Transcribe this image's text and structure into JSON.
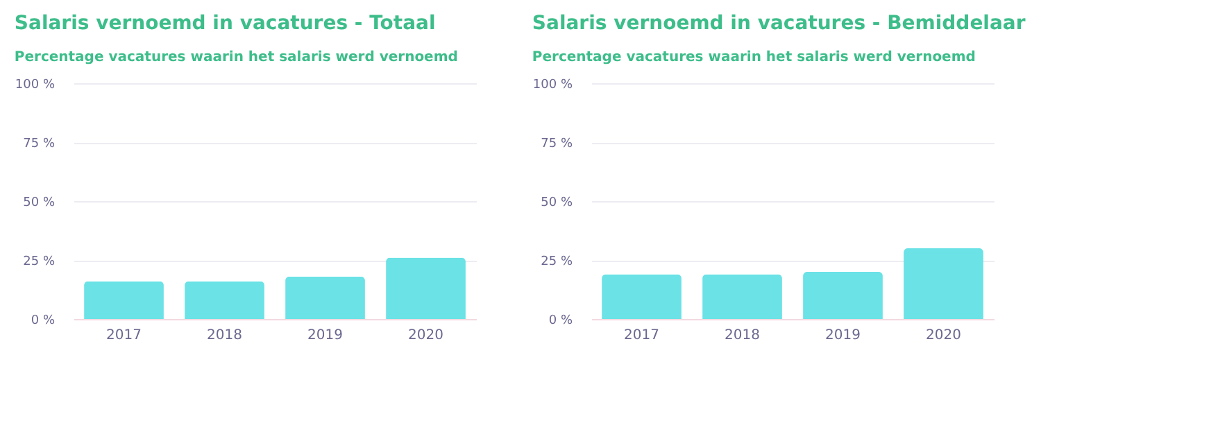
{
  "chart_data": [
    {
      "type": "bar",
      "title": "Salaris vernoemd in vacatures - Totaal",
      "subtitle": "Percentage vacatures waarin het salaris werd vernoemd",
      "categories": [
        "2017",
        "2018",
        "2019",
        "2020"
      ],
      "values": [
        16,
        16,
        18,
        26
      ],
      "color": "#6ae2e6",
      "ylim": [
        0,
        100
      ],
      "yticks": [
        {
          "value": 0,
          "label": "0 %"
        },
        {
          "value": 25,
          "label": "25 %"
        },
        {
          "value": 50,
          "label": "50 %"
        },
        {
          "value": 75,
          "label": "75 %"
        },
        {
          "value": 100,
          "label": "100 %"
        }
      ],
      "grid": "y"
    },
    {
      "type": "bar",
      "title": "Salaris vernoemd in vacatures - Bemiddelaar",
      "subtitle": "Percentage vacatures waarin het salaris werd vernoemd",
      "categories": [
        "2017",
        "2018",
        "2019",
        "2020"
      ],
      "values": [
        19,
        19,
        20,
        30
      ],
      "color": "#6ae2e6",
      "ylim": [
        0,
        100
      ],
      "yticks": [
        {
          "value": 0,
          "label": "0 %"
        },
        {
          "value": 25,
          "label": "25 %"
        },
        {
          "value": 50,
          "label": "50 %"
        },
        {
          "value": 75,
          "label": "75 %"
        },
        {
          "value": 100,
          "label": "100 %"
        }
      ],
      "grid": "y"
    }
  ]
}
